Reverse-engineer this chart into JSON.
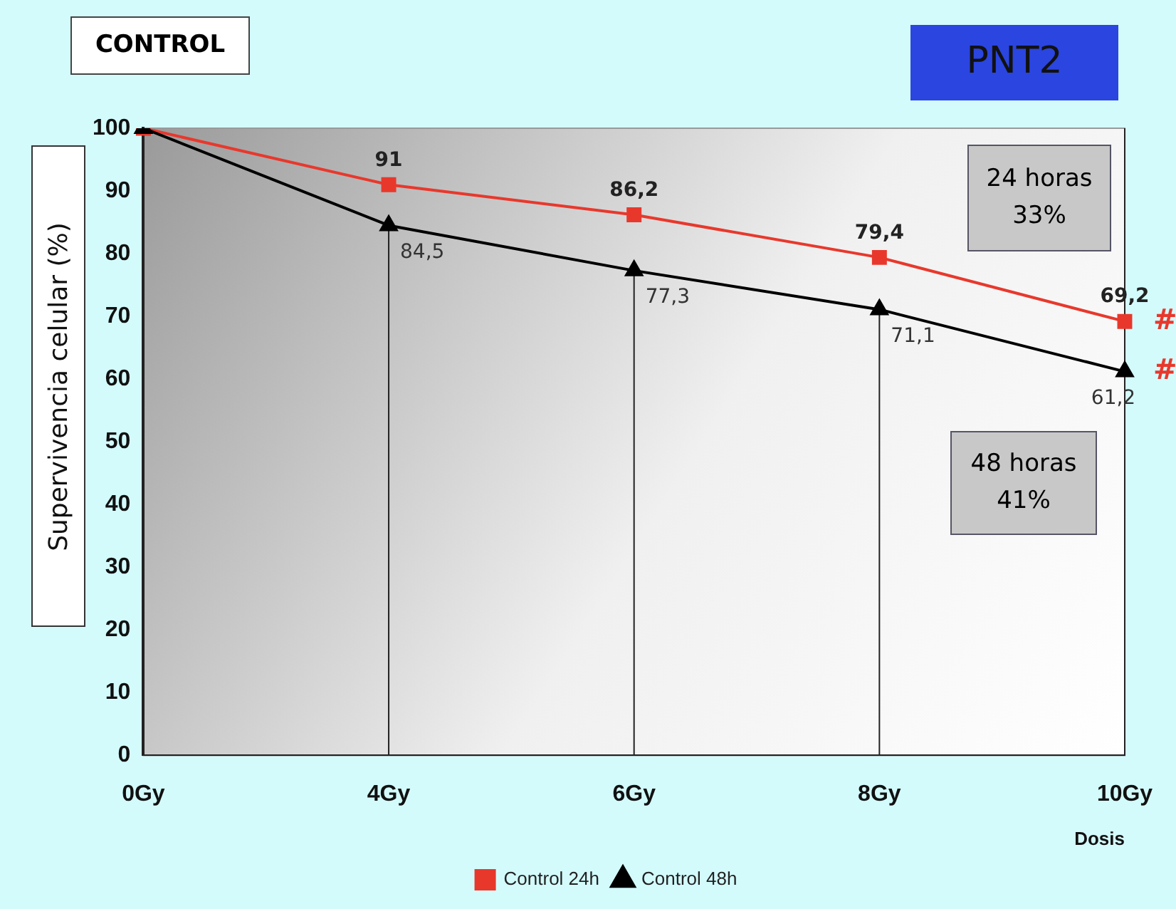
{
  "chart_data": {
    "type": "line",
    "xlabel": "Dosis",
    "ylabel": "Supervivencia celular (%)",
    "categories": [
      "0Gy",
      "4Gy",
      "6Gy",
      "8Gy",
      "10Gy"
    ],
    "series": [
      {
        "name": "Control 24h",
        "color": "#e8382c",
        "marker": "square",
        "values": [
          100,
          91,
          86.2,
          79.4,
          69.2
        ],
        "value_labels": [
          null,
          "91",
          "86,2",
          "79,4",
          "69,2"
        ]
      },
      {
        "name": "Control 48h",
        "color": "#000000",
        "marker": "triangle",
        "values": [
          100,
          84.5,
          77.3,
          71.1,
          61.2
        ],
        "value_labels": [
          null,
          "84,5",
          "77,3",
          "71,1",
          "61,2"
        ]
      }
    ],
    "ylim": [
      0,
      100
    ],
    "yticks": [
      0,
      10,
      20,
      30,
      40,
      50,
      60,
      70,
      80,
      90,
      100
    ],
    "grid": "x",
    "legend": "bottom",
    "annotations": [
      "CONTROL",
      "PNT2",
      "24 horas\n33%",
      "48 horas\n41%",
      {
        "text": "#",
        "x": "10Gy",
        "y": 69.2
      },
      {
        "text": "#",
        "x": "10Gy",
        "y": 61.2
      }
    ]
  }
}
